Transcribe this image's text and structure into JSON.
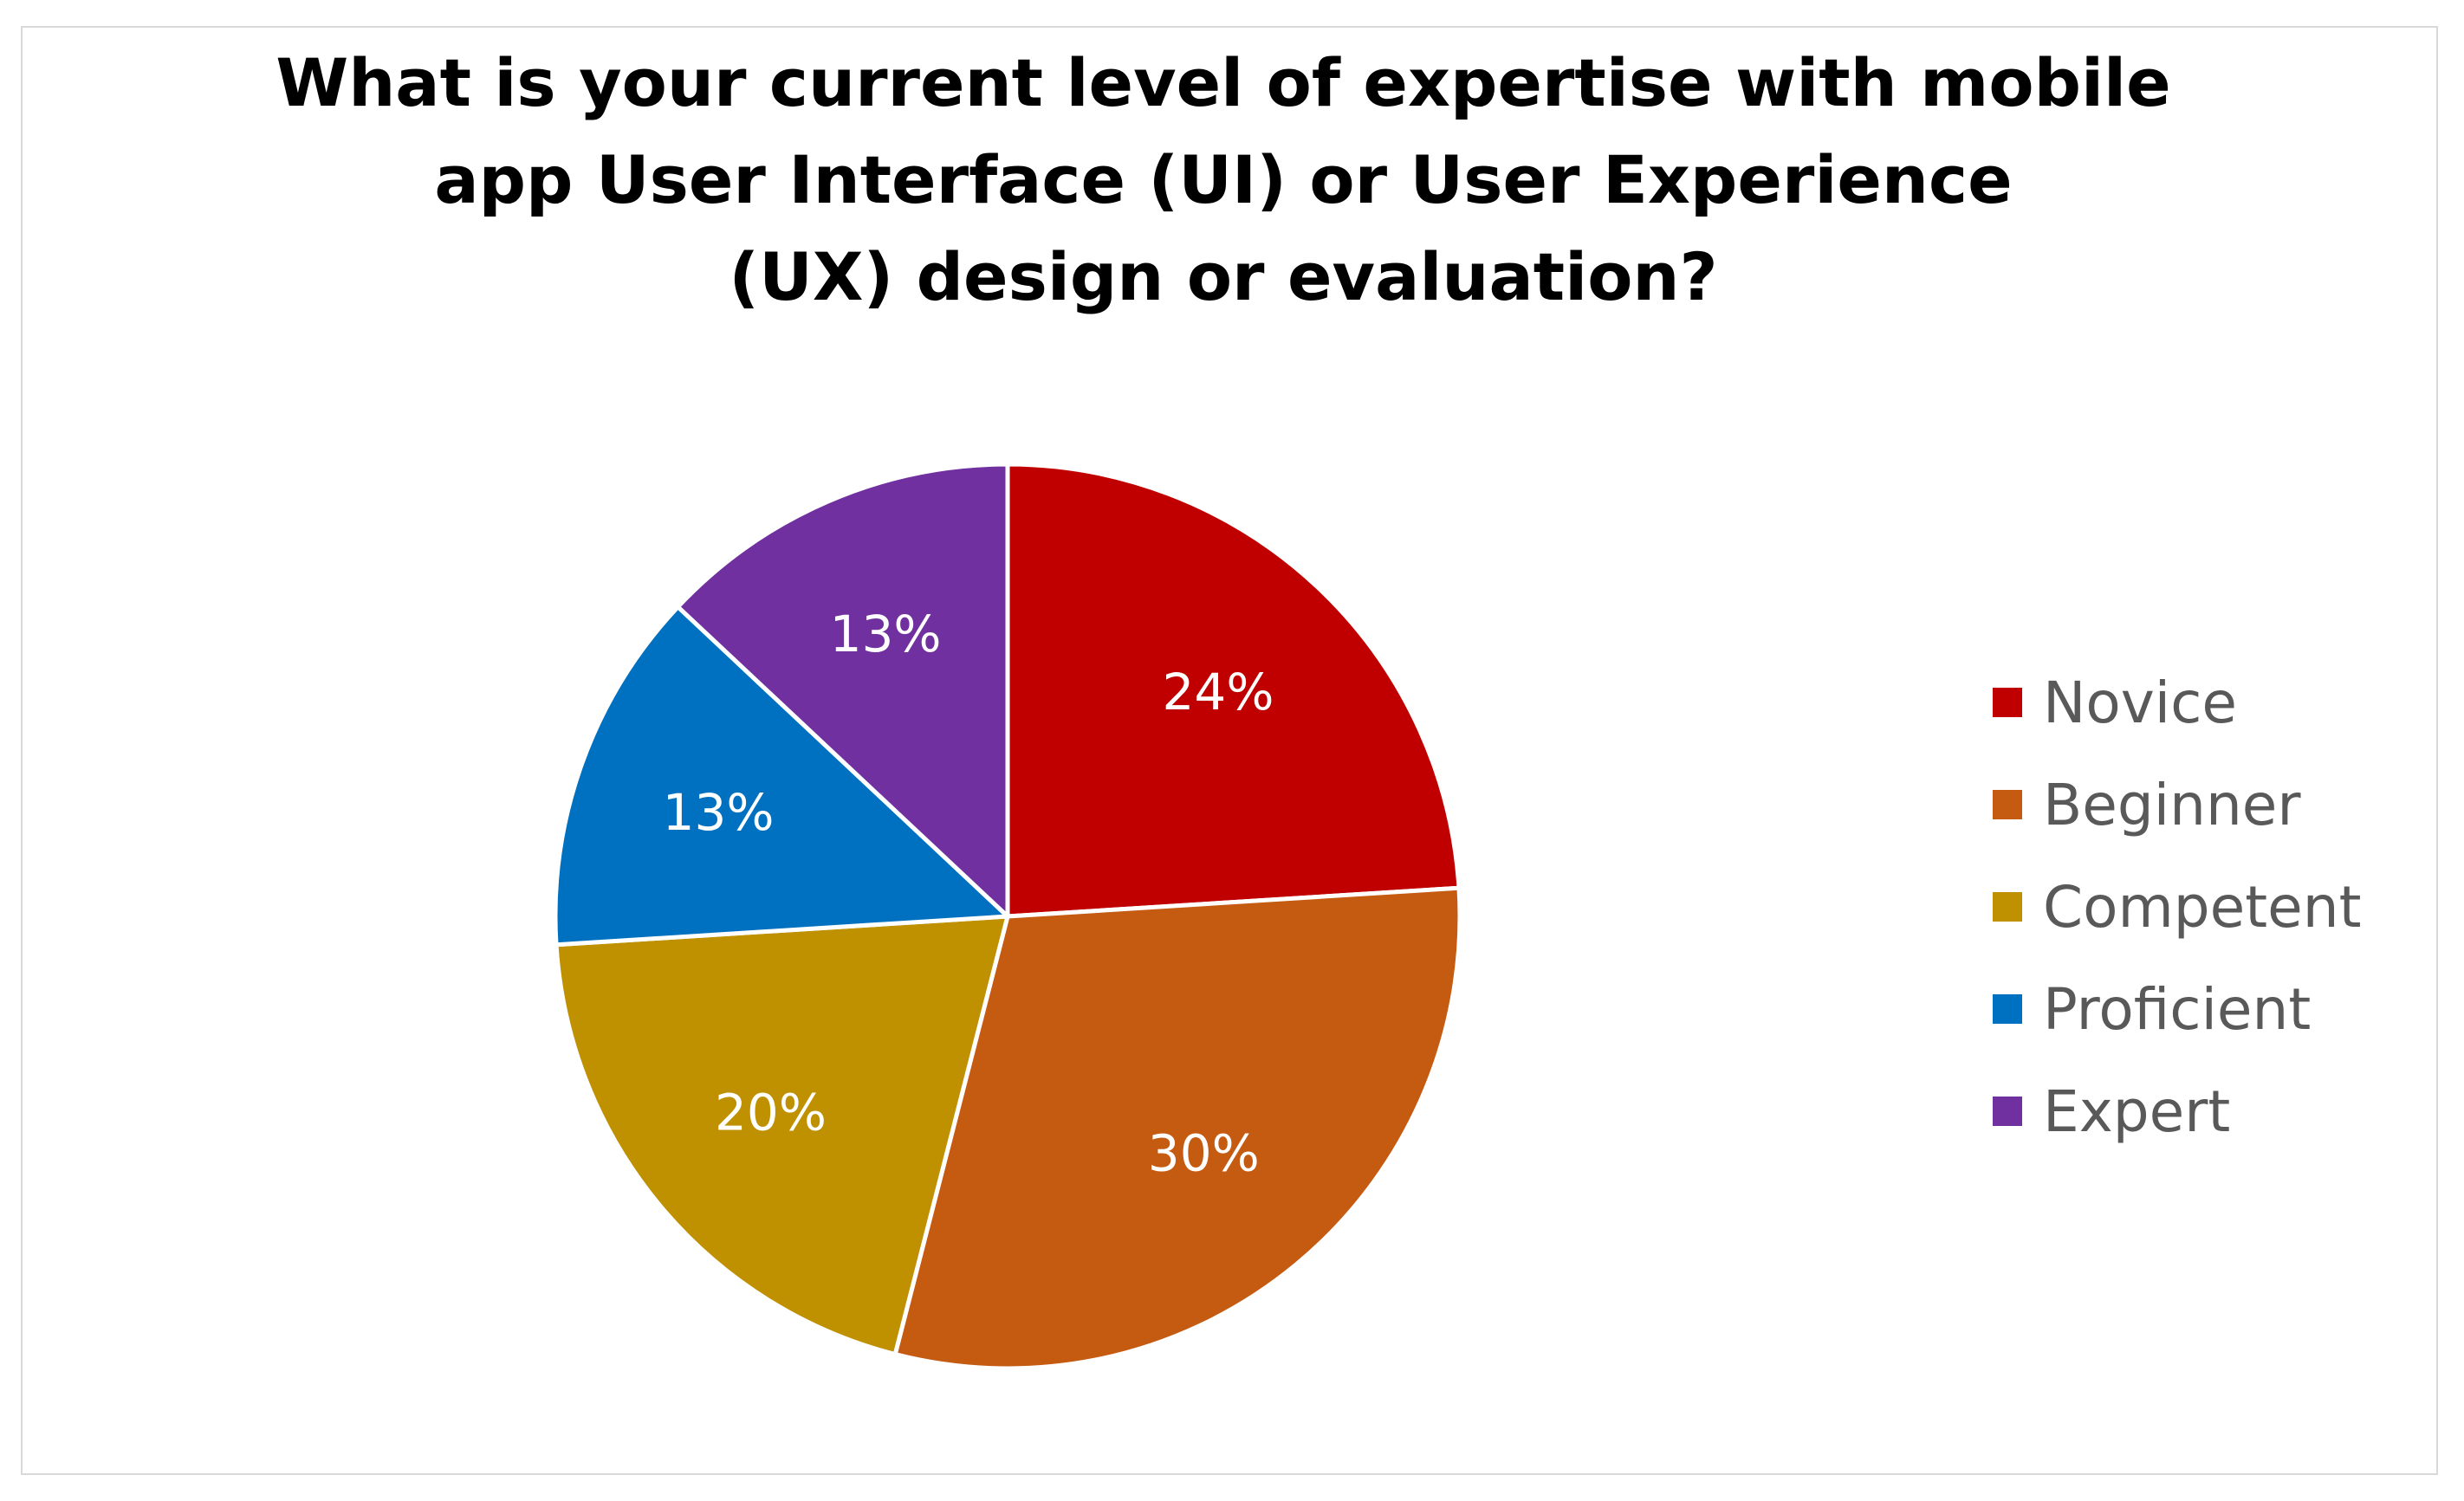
{
  "chart_data": {
    "type": "pie",
    "title_lines": [
      "What is your current level of expertise with mobile",
      "app User Interface (UI) or User Experience",
      "(UX) design or evaluation?"
    ],
    "categories": [
      "Novice",
      "Beginner",
      "Competent",
      "Proficient",
      "Expert"
    ],
    "values": [
      24,
      30,
      20,
      13,
      13
    ],
    "data_labels": [
      "24%",
      "30%",
      "20%",
      "13%",
      "13%"
    ],
    "colors": [
      "#C00000",
      "#C55A11",
      "#BF9000",
      "#0070C0",
      "#7030A0"
    ],
    "legend_position": "right"
  }
}
